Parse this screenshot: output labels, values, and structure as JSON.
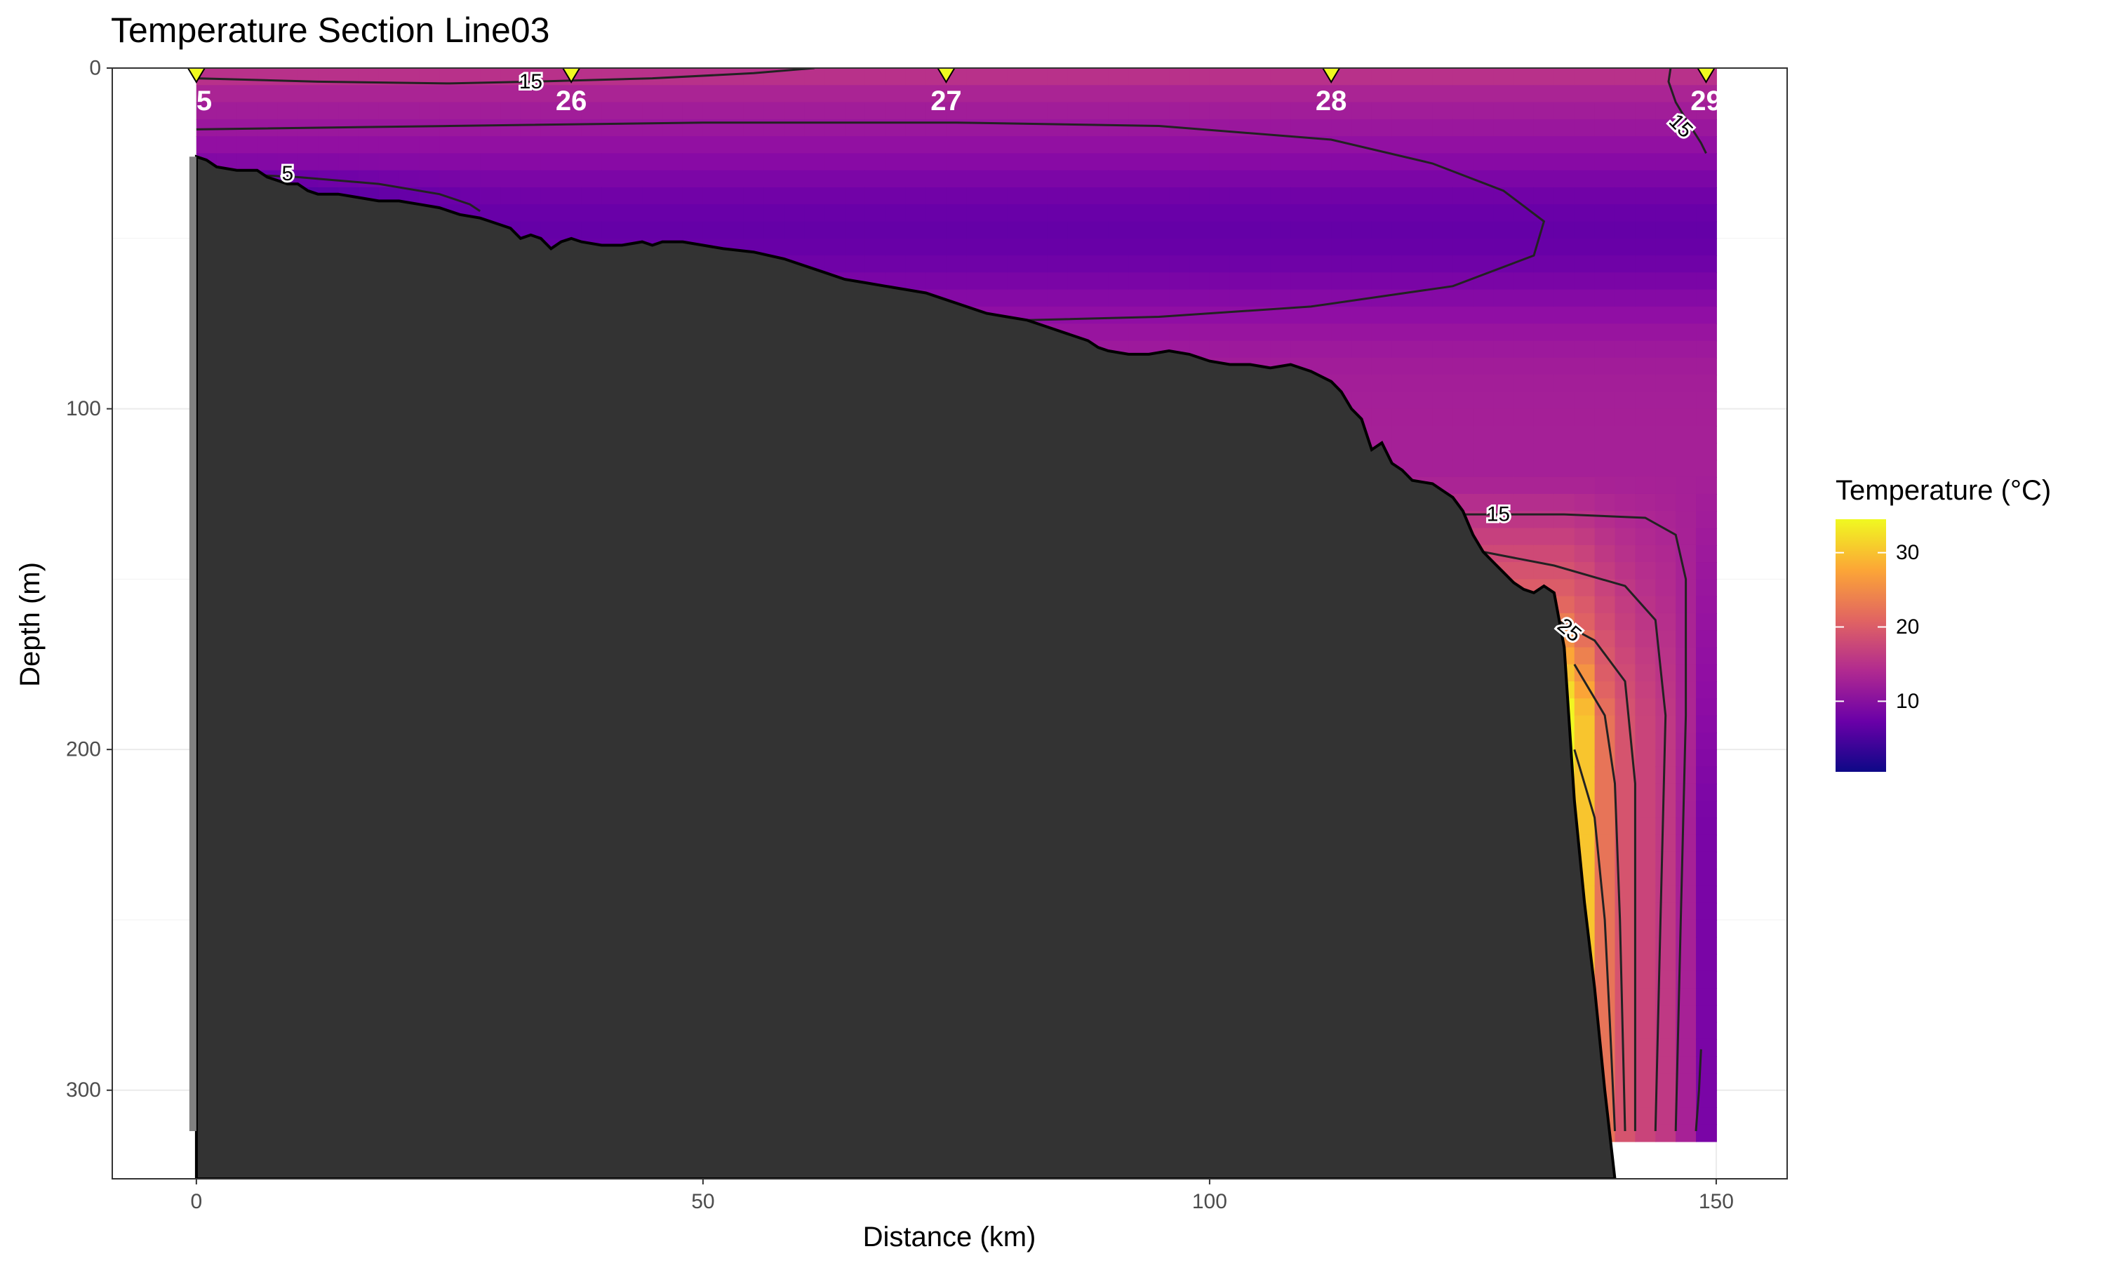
{
  "chart_data": {
    "type": "heatmap",
    "title": "Temperature Section Line03",
    "xlabel": "Distance (km)",
    "ylabel": "Depth (m)",
    "xlim": [
      -8.3,
      157.0
    ],
    "ylim": [
      0,
      326
    ],
    "y_reversed": true,
    "x_ticks": [
      0,
      50,
      100,
      150
    ],
    "y_ticks": [
      0,
      100,
      200,
      300
    ],
    "grid": true,
    "colorscale": "plasma",
    "colors": [
      "#0d0887",
      "#6a00a8",
      "#b12a90",
      "#e16462",
      "#fca636",
      "#f0f921"
    ],
    "stations": [
      {
        "name": "25",
        "x": 0
      },
      {
        "name": "26",
        "x": 37
      },
      {
        "name": "27",
        "x": 74
      },
      {
        "name": "28",
        "x": 112
      },
      {
        "name": "29",
        "x": 149
      }
    ],
    "station_marker_color": "#f0f921",
    "contour_labels": [
      {
        "text": "15",
        "x": 33,
        "y": 4
      },
      {
        "text": "5",
        "x": 9,
        "y": 31
      },
      {
        "text": "15",
        "x": 146.5,
        "y": 17,
        "angle": 45
      },
      {
        "text": "15",
        "x": 128.5,
        "y": 131
      },
      {
        "text": "25",
        "x": 135.5,
        "y": 165,
        "angle": 40
      }
    ],
    "bathymetry": {
      "fill": "#333333",
      "points": [
        [
          0,
          26
        ],
        [
          1,
          27
        ],
        [
          2,
          29
        ],
        [
          4,
          30
        ],
        [
          6,
          30
        ],
        [
          7,
          32
        ],
        [
          8,
          33
        ],
        [
          9,
          34
        ],
        [
          10,
          34
        ],
        [
          11,
          36
        ],
        [
          12,
          37
        ],
        [
          14,
          37
        ],
        [
          16,
          38
        ],
        [
          18,
          39
        ],
        [
          20,
          39
        ],
        [
          22,
          40
        ],
        [
          24,
          41
        ],
        [
          26,
          43
        ],
        [
          28,
          44
        ],
        [
          29,
          45
        ],
        [
          30,
          46
        ],
        [
          31,
          47
        ],
        [
          32,
          50
        ],
        [
          33,
          49
        ],
        [
          34,
          50
        ],
        [
          35,
          53
        ],
        [
          36,
          51
        ],
        [
          37,
          50
        ],
        [
          38,
          51
        ],
        [
          40,
          52
        ],
        [
          42,
          52
        ],
        [
          44,
          51
        ],
        [
          45,
          52
        ],
        [
          46,
          51
        ],
        [
          48,
          51
        ],
        [
          50,
          52
        ],
        [
          52,
          53
        ],
        [
          55,
          54
        ],
        [
          58,
          56
        ],
        [
          60,
          58
        ],
        [
          62,
          60
        ],
        [
          64,
          62
        ],
        [
          66,
          63
        ],
        [
          68,
          64
        ],
        [
          70,
          65
        ],
        [
          72,
          66
        ],
        [
          74,
          68
        ],
        [
          76,
          70
        ],
        [
          78,
          72
        ],
        [
          80,
          73
        ],
        [
          82,
          74
        ],
        [
          84,
          76
        ],
        [
          86,
          78
        ],
        [
          88,
          80
        ],
        [
          89,
          82
        ],
        [
          90,
          83
        ],
        [
          92,
          84
        ],
        [
          94,
          84
        ],
        [
          96,
          83
        ],
        [
          98,
          84
        ],
        [
          100,
          86
        ],
        [
          102,
          87
        ],
        [
          104,
          87
        ],
        [
          106,
          88
        ],
        [
          108,
          87
        ],
        [
          110,
          89
        ],
        [
          112,
          92
        ],
        [
          113,
          95
        ],
        [
          114,
          100
        ],
        [
          115,
          103
        ],
        [
          116,
          112
        ],
        [
          117,
          110
        ],
        [
          118,
          116
        ],
        [
          119,
          118
        ],
        [
          120,
          121
        ],
        [
          122,
          122
        ],
        [
          123,
          124
        ],
        [
          124,
          126
        ],
        [
          125,
          130
        ],
        [
          126,
          137
        ],
        [
          127,
          142
        ],
        [
          128,
          145
        ],
        [
          129,
          148
        ],
        [
          130,
          151
        ],
        [
          131,
          153
        ],
        [
          132,
          154
        ],
        [
          133,
          152
        ],
        [
          134,
          154
        ],
        [
          135,
          170
        ],
        [
          136,
          215
        ],
        [
          137,
          245
        ],
        [
          138,
          270
        ],
        [
          139,
          300
        ],
        [
          140,
          326
        ],
        [
          0,
          326
        ]
      ]
    },
    "contours": [
      {
        "level": 15,
        "points": [
          [
            0,
            3
          ],
          [
            12,
            4
          ],
          [
            25,
            4.5
          ],
          [
            33,
            4
          ],
          [
            45,
            3
          ],
          [
            55,
            1.5
          ],
          [
            61,
            0
          ]
        ]
      },
      {
        "level": 15,
        "points": [
          [
            145.5,
            0
          ],
          [
            145.3,
            4
          ],
          [
            146,
            10
          ],
          [
            147,
            15
          ],
          [
            148.5,
            22
          ],
          [
            149,
            25
          ]
        ]
      },
      {
        "level": 10,
        "points": [
          [
            0,
            18
          ],
          [
            25,
            17
          ],
          [
            50,
            16
          ],
          [
            75,
            16
          ],
          [
            95,
            17
          ],
          [
            112,
            21
          ],
          [
            122,
            28
          ],
          [
            129,
            36
          ],
          [
            133,
            45
          ],
          [
            132,
            55
          ],
          [
            124,
            64
          ],
          [
            110,
            70
          ],
          [
            95,
            73
          ],
          [
            82,
            74
          ],
          [
            74,
            73
          ]
        ]
      },
      {
        "level": 5,
        "points": [
          [
            3,
            31
          ],
          [
            10,
            32
          ],
          [
            18,
            34
          ],
          [
            24,
            37
          ],
          [
            27,
            40
          ],
          [
            28,
            42
          ]
        ]
      },
      {
        "level": 15,
        "points": [
          [
            125,
            131
          ],
          [
            135,
            131
          ],
          [
            143,
            132
          ],
          [
            146,
            137
          ],
          [
            147,
            150
          ],
          [
            147,
            190
          ],
          [
            146.5,
            250
          ],
          [
            146,
            312
          ]
        ]
      },
      {
        "level": 20,
        "points": [
          [
            127,
            142
          ],
          [
            134,
            146
          ],
          [
            141,
            152
          ],
          [
            144,
            162
          ],
          [
            145,
            190
          ],
          [
            144.5,
            250
          ],
          [
            144,
            312
          ]
        ]
      },
      {
        "level": 25,
        "points": [
          [
            133,
            160
          ],
          [
            138,
            168
          ],
          [
            141,
            180
          ],
          [
            142,
            210
          ],
          [
            142,
            260
          ],
          [
            142,
            312
          ]
        ]
      },
      {
        "level": 30,
        "points": [
          [
            136,
            175
          ],
          [
            139,
            190
          ],
          [
            140,
            210
          ],
          [
            140.5,
            250
          ],
          [
            141,
            312
          ]
        ]
      },
      {
        "level": 33,
        "points": [
          [
            136,
            200
          ],
          [
            138,
            220
          ],
          [
            139,
            250
          ],
          [
            139.5,
            280
          ],
          [
            140,
            312
          ]
        ]
      },
      {
        "level": 10,
        "points": [
          [
            148.5,
            288
          ],
          [
            148.3,
            300
          ],
          [
            148,
            312
          ]
        ]
      }
    ],
    "legend": {
      "title": "Temperature (°C)",
      "ticks": [
        10,
        20,
        30
      ],
      "range": [
        0.5,
        34.5
      ],
      "position": "right"
    }
  }
}
